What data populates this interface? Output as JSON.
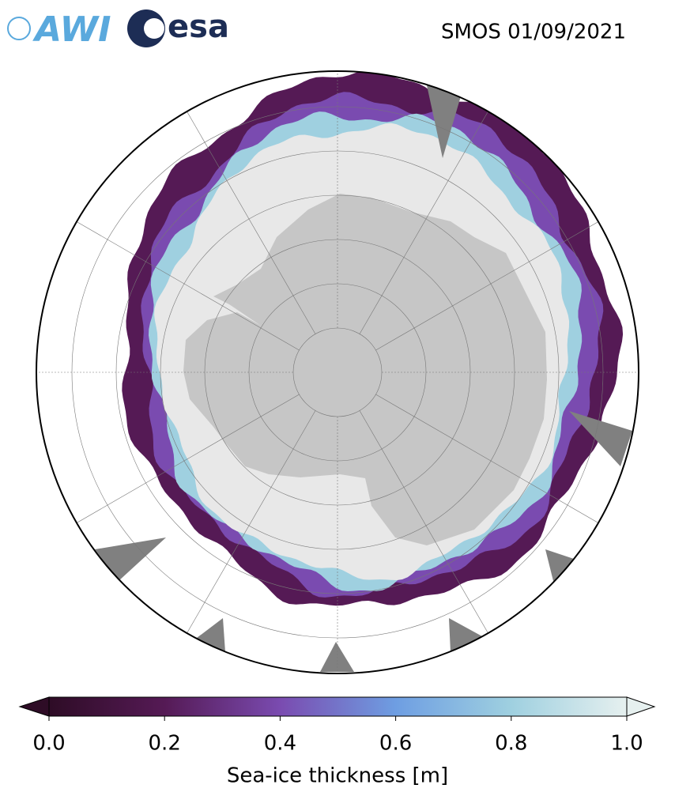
{
  "header": {
    "title": "SMOS 01/09/2021",
    "logos": [
      "AWI",
      "esa"
    ]
  },
  "colorbar": {
    "label": "Sea-ice thickness [m]",
    "lim": [
      0,
      1
    ],
    "ticks": [
      {
        "value": 0,
        "label": "0.0"
      },
      {
        "value": 0.2,
        "label": "0.2"
      },
      {
        "value": 0.4,
        "label": "0.4"
      },
      {
        "value": 0.6,
        "label": "0.6"
      },
      {
        "value": 0.8,
        "label": "0.8"
      },
      {
        "value": 1,
        "label": "1.0"
      }
    ],
    "colors": [
      "#2e0c26",
      "#551a55",
      "#7a4bb0",
      "#6e9ee2",
      "#9fd0e0",
      "#e6f0ef"
    ]
  }
}
